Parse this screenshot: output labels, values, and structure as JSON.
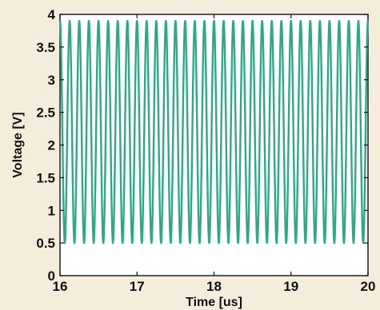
{
  "chart_data": {
    "type": "line",
    "title": "",
    "xlabel": "Time [us]",
    "ylabel": "Voltage [V]",
    "xlim": [
      16,
      20
    ],
    "ylim": [
      0,
      4
    ],
    "x_ticks": [
      "16",
      "17",
      "18",
      "19",
      "20"
    ],
    "y_ticks": [
      "0",
      "0.5",
      "1",
      "1.5",
      "2",
      "2.5",
      "3",
      "3.5",
      "4"
    ],
    "grid": false,
    "legend": "none",
    "series": [
      {
        "color": "#2fa888",
        "waveform": "periodic oscillation",
        "period_us": 0.125,
        "first_peak_us": 16.25,
        "min": 0.5,
        "max": 3.9
      }
    ]
  }
}
